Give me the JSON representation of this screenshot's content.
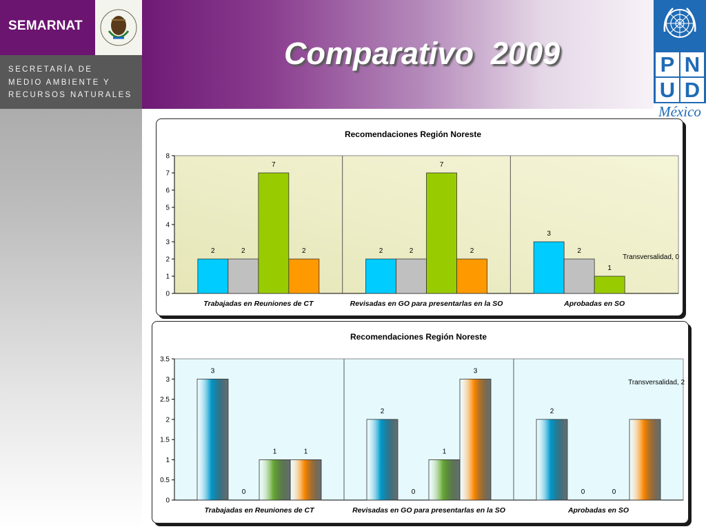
{
  "header": {
    "org_name": "SEMARNAT",
    "ministry_lines": [
      "SECRETARÍA DE",
      "MEDIO AMBIENTE Y",
      "RECURSOS NATURALES"
    ],
    "title": "Comparativo  2009",
    "undp_letters": [
      "P",
      "N",
      "U",
      "D"
    ],
    "undp_country": "México",
    "seal_text": "ESTADOS UNIDOS MEXICANOS"
  },
  "colors": {
    "purple": "#6b1470",
    "undp_blue": "#1f6bb5"
  },
  "chart_data": [
    {
      "type": "bar",
      "title": "Recomendaciones Región Noreste",
      "categories": [
        "Trabajadas en Reuniones de CT",
        "Revisadas en GO para presentarlas en la SO",
        "Aprobadas en SO"
      ],
      "series": [
        {
          "values": [
            2,
            2,
            3
          ],
          "color": "#00ccff"
        },
        {
          "values": [
            2,
            2,
            2
          ],
          "color": "#c0c0c0"
        },
        {
          "values": [
            7,
            7,
            1
          ],
          "color": "#99cc00"
        },
        {
          "values": [
            2,
            2,
            0
          ],
          "color": "#ff9900"
        }
      ],
      "value_labels": [
        [
          "2",
          "2",
          "7",
          "2"
        ],
        [
          "2",
          "2",
          "7",
          "2"
        ],
        [
          "3",
          "2",
          "1",
          ""
        ]
      ],
      "annotation": "Transversalidad, 0",
      "ylim": [
        0,
        8
      ],
      "yticks": [
        "0",
        "1",
        "2",
        "3",
        "4",
        "5",
        "6",
        "7",
        "8"
      ],
      "plot_background": "#eeeec0",
      "gridlines": false,
      "legend": "none",
      "xlabel": "",
      "ylabel": ""
    },
    {
      "type": "bar",
      "title": "Recomendaciones Región Noreste",
      "categories": [
        "Trabajadas en Reuniones de CT",
        "Revisadas en GO para presentarlas en la SO",
        "Aprobadas en SO"
      ],
      "series": [
        {
          "values": [
            3,
            2,
            2
          ],
          "color": "#0099cc"
        },
        {
          "values": [
            0,
            0,
            0
          ],
          "color": "#a0a0a0"
        },
        {
          "values": [
            1,
            1,
            0
          ],
          "color": "#66aa33"
        },
        {
          "values": [
            1,
            3,
            2
          ],
          "color": "#ff8800"
        }
      ],
      "value_labels": [
        [
          "3",
          "0",
          "1",
          "1"
        ],
        [
          "2",
          "0",
          "1",
          "3"
        ],
        [
          "2",
          "0",
          "0",
          ""
        ]
      ],
      "annotation": "Transversalidad, 2",
      "ylim": [
        0,
        3.5
      ],
      "yticks": [
        "0",
        "0.5",
        "1",
        "1.5",
        "2",
        "2.5",
        "3",
        "3.5"
      ],
      "plot_background": "#e6fafe",
      "gridlines": false,
      "legend": "none",
      "xlabel": "",
      "ylabel": ""
    }
  ]
}
